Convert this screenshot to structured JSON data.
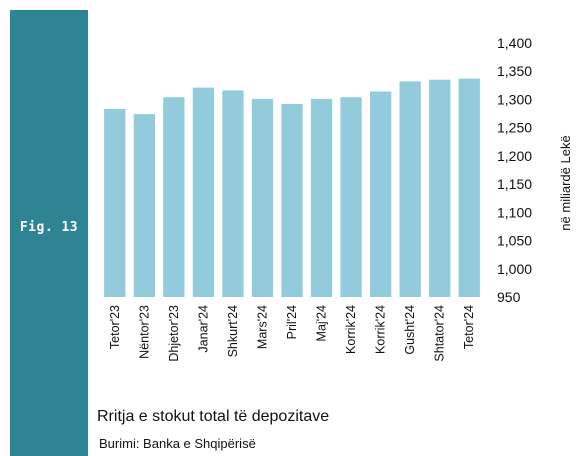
{
  "figure": {
    "label": "Fig. 13",
    "title": "Rritja e stokut total të depozitave",
    "source": "Burimi: Banka e Shqipërisë",
    "band_color": "#2e8493"
  },
  "chart_data": {
    "type": "bar",
    "categories": [
      "Tetor'23",
      "Nëntor'23",
      "Dhjetor'23",
      "Janar'24",
      "Shkurt'24",
      "Mars'24",
      "Pril'24",
      "Maj'24",
      "Korrik'24",
      "Korrik'24",
      "Gusht'24",
      "Shtator'24",
      "Tetor'24"
    ],
    "values": [
      1283,
      1274,
      1304,
      1321,
      1316,
      1301,
      1292,
      1301,
      1304,
      1314,
      1332,
      1335,
      1337
    ],
    "ylabel": "në miliardë  Lekë",
    "ylim": [
      950,
      1400
    ],
    "yticks": [
      950,
      1000,
      1050,
      1100,
      1150,
      1200,
      1250,
      1300,
      1350,
      1400
    ],
    "ytick_labels": [
      "950",
      "1,000",
      "1,050",
      "1,100",
      "1,150",
      "1,200",
      "1,250",
      "1,300",
      "1,350",
      "1,400"
    ],
    "y_axis_side": "right",
    "bar_color": "#92ccdc",
    "grid": false
  }
}
